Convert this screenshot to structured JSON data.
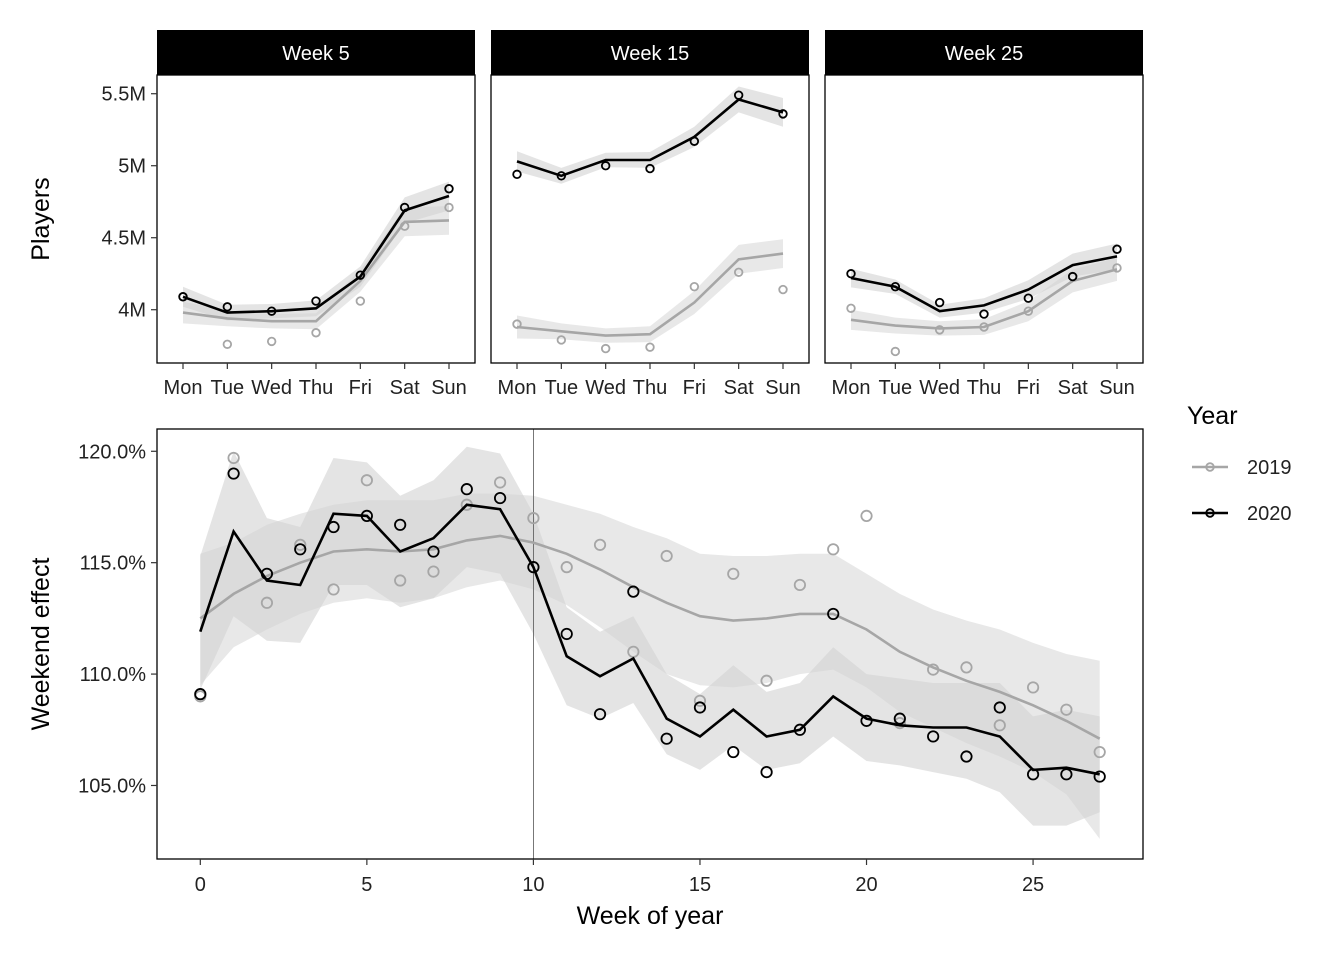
{
  "colors": {
    "y2019": "#a6a6a6",
    "y2020": "#000000",
    "band2019": "#d9d9d9",
    "band2020": "#d2d2d2",
    "strip": "#000000",
    "strip_text": "#ffffff"
  },
  "legend": {
    "title": "Year",
    "items": [
      "2019",
      "2020"
    ]
  },
  "chart_data": [
    {
      "type": "line",
      "ylabel": "Players",
      "yticks": [
        4000000,
        4500000,
        5000000,
        5500000
      ],
      "ytick_labels": [
        "4M",
        "4.5M",
        "5M",
        "5.5M"
      ],
      "ylim": [
        3630000,
        5630000
      ],
      "categories": [
        "Mon",
        "Tue",
        "Wed",
        "Thu",
        "Fri",
        "Sat",
        "Sun"
      ],
      "panels": [
        {
          "title": "Week 5",
          "series": [
            {
              "name": "2019",
              "points": [
                4090000,
                3760000,
                3780000,
                3840000,
                4060000,
                4580000,
                4710000
              ],
              "line": [
                3980000,
                3940000,
                3920000,
                3920000,
                4200000,
                4610000,
                4620000
              ],
              "band": [
                75000,
                55000,
                50000,
                55000,
                75000,
                100000,
                100000
              ]
            },
            {
              "name": "2020",
              "points": [
                4090000,
                4020000,
                3990000,
                4060000,
                4240000,
                4710000,
                4840000
              ],
              "line": [
                4090000,
                3980000,
                3990000,
                4010000,
                4230000,
                4690000,
                4790000
              ],
              "band": [
                70000,
                55000,
                50000,
                55000,
                70000,
                90000,
                100000
              ]
            }
          ]
        },
        {
          "title": "Week 15",
          "series": [
            {
              "name": "2019",
              "points": [
                3900000,
                3790000,
                3730000,
                3740000,
                4160000,
                4260000,
                4140000
              ],
              "line": [
                3880000,
                3850000,
                3820000,
                3830000,
                4050000,
                4350000,
                4390000
              ],
              "band": [
                80000,
                55000,
                50000,
                55000,
                80000,
                100000,
                100000
              ]
            },
            {
              "name": "2020",
              "points": [
                4940000,
                4930000,
                5000000,
                4980000,
                5170000,
                5490000,
                5360000
              ],
              "line": [
                5030000,
                4930000,
                5040000,
                5040000,
                5200000,
                5460000,
                5370000
              ],
              "band": [
                70000,
                55000,
                50000,
                55000,
                70000,
                90000,
                100000
              ]
            }
          ]
        },
        {
          "title": "Week 25",
          "series": [
            {
              "name": "2019",
              "points": [
                4010000,
                3710000,
                3860000,
                3880000,
                3990000,
                4230000,
                4290000
              ],
              "line": [
                3930000,
                3890000,
                3870000,
                3880000,
                3990000,
                4200000,
                4280000
              ],
              "band": [
                70000,
                55000,
                50000,
                55000,
                70000,
                80000,
                80000
              ]
            },
            {
              "name": "2020",
              "points": [
                4250000,
                4160000,
                4050000,
                3970000,
                4080000,
                4230000,
                4420000
              ],
              "line": [
                4220000,
                4160000,
                3990000,
                4030000,
                4140000,
                4310000,
                4370000
              ],
              "band": [
                65000,
                50000,
                45000,
                50000,
                65000,
                80000,
                90000
              ]
            }
          ]
        }
      ]
    },
    {
      "type": "line",
      "xlabel": "Week of year",
      "ylabel": "Weekend effect",
      "xlim": [
        -1.3,
        28.3
      ],
      "ylim": [
        101.7,
        121.0
      ],
      "xticks": [
        0,
        5,
        10,
        15,
        20,
        25
      ],
      "yticks": [
        105,
        110,
        115,
        120
      ],
      "ytick_labels": [
        "105.0%",
        "110.0%",
        "115.0%",
        "120.0%"
      ],
      "vline_x": 10,
      "series": [
        {
          "name": "2019",
          "x": [
            0,
            1,
            2,
            3,
            4,
            5,
            6,
            7,
            8,
            9,
            10,
            11,
            12,
            13,
            14,
            15,
            16,
            17,
            18,
            19,
            20,
            21,
            22,
            23,
            24,
            25,
            26,
            27
          ],
          "points": [
            109.0,
            119.7,
            113.2,
            115.8,
            113.8,
            118.7,
            114.2,
            114.6,
            117.6,
            118.6,
            117.0,
            114.8,
            115.8,
            111.0,
            115.3,
            108.8,
            114.5,
            109.7,
            114.0,
            115.6,
            117.1,
            107.8,
            110.2,
            110.3,
            107.7,
            109.4,
            108.4,
            106.5
          ],
          "line": [
            112.5,
            113.6,
            114.4,
            115.0,
            115.5,
            115.6,
            115.5,
            115.6,
            116.0,
            116.2,
            115.9,
            115.4,
            114.7,
            113.9,
            113.2,
            112.6,
            112.4,
            112.5,
            112.7,
            112.7,
            112.0,
            111.0,
            110.3,
            109.7,
            109.2,
            108.6,
            107.9,
            107.1
          ],
          "lower": [
            109.5,
            111.2,
            112.0,
            112.7,
            113.2,
            113.4,
            113.2,
            113.4,
            113.9,
            114.2,
            113.8,
            113.1,
            112.1,
            111.0,
            110.0,
            109.5,
            109.4,
            109.6,
            110.0,
            110.2,
            109.4,
            108.3,
            107.6,
            106.9,
            106.3,
            105.6,
            104.6,
            102.6
          ],
          "upper": [
            115.4,
            115.9,
            116.7,
            117.2,
            117.6,
            117.8,
            117.8,
            117.8,
            118.1,
            118.1,
            118.0,
            117.6,
            117.2,
            116.6,
            116.1,
            115.4,
            115.3,
            115.3,
            115.4,
            115.4,
            114.5,
            113.6,
            112.9,
            112.4,
            112.0,
            111.4,
            110.9,
            110.6
          ]
        },
        {
          "name": "2020",
          "x": [
            0,
            1,
            2,
            3,
            4,
            5,
            6,
            7,
            8,
            9,
            10,
            11,
            12,
            13,
            14,
            15,
            16,
            17,
            18,
            19,
            20,
            21,
            22,
            23,
            24,
            25,
            26,
            27
          ],
          "points": [
            109.1,
            119.0,
            114.5,
            115.6,
            116.6,
            117.1,
            116.7,
            115.5,
            118.3,
            117.9,
            114.8,
            111.8,
            108.2,
            113.7,
            107.1,
            108.5,
            106.5,
            105.6,
            107.5,
            112.7,
            107.9,
            108.0,
            107.2,
            106.3,
            108.5,
            105.5,
            105.5,
            105.4
          ],
          "line": [
            111.9,
            116.4,
            114.2,
            114.0,
            117.2,
            117.1,
            115.5,
            116.1,
            117.6,
            117.4,
            114.8,
            110.8,
            109.9,
            110.7,
            108.0,
            107.2,
            108.4,
            107.2,
            107.5,
            109.0,
            108.0,
            107.7,
            107.6,
            107.6,
            107.2,
            105.7,
            105.8,
            105.5
          ],
          "lower": [
            109.3,
            112.6,
            111.5,
            111.4,
            114.0,
            114.0,
            113.0,
            113.4,
            114.8,
            114.5,
            111.8,
            108.6,
            108.0,
            108.7,
            106.4,
            105.7,
            106.8,
            105.7,
            106.0,
            107.2,
            106.1,
            105.9,
            105.6,
            105.3,
            104.7,
            103.2,
            103.2,
            103.8
          ],
          "upper": [
            115.3,
            120.0,
            117.0,
            116.6,
            119.7,
            119.5,
            118.0,
            118.7,
            120.2,
            119.9,
            117.2,
            113.0,
            111.9,
            112.6,
            110.0,
            109.1,
            110.4,
            109.2,
            109.6,
            111.2,
            110.0,
            109.8,
            109.6,
            109.6,
            109.6,
            108.1,
            108.4,
            108.1
          ]
        }
      ]
    }
  ]
}
